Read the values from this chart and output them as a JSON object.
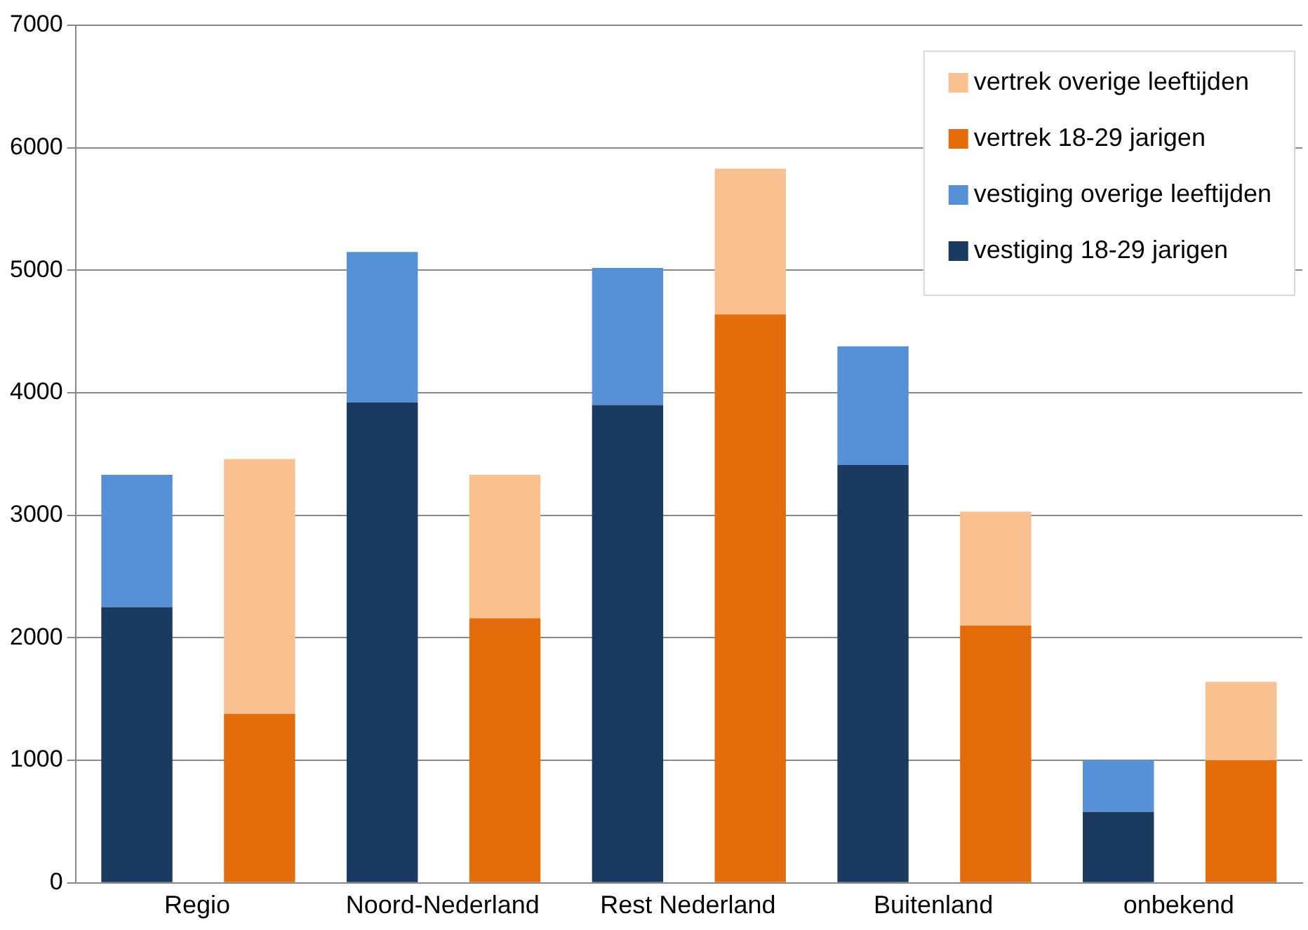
{
  "chart_data": {
    "type": "bar",
    "stacked": true,
    "categories": [
      "Regio",
      null,
      "Noord-Nederland",
      null,
      "Rest Nederland",
      null,
      "Buitenland",
      null,
      "onbekend",
      null
    ],
    "series": [
      {
        "name": "vestiging 18-29 jarigen",
        "color": "#1a3a5f",
        "values": [
          2250,
          null,
          3920,
          null,
          3900,
          null,
          3410,
          null,
          580,
          null
        ]
      },
      {
        "name": "vestiging overige leeftijden",
        "color": "#5690d6",
        "values": [
          1080,
          null,
          1230,
          null,
          1120,
          null,
          970,
          null,
          420,
          null
        ]
      },
      {
        "name": "vertrek 18-29 jarigen",
        "color": "#e46c0a",
        "values": [
          null,
          1380,
          null,
          2160,
          null,
          4640,
          null,
          2100,
          null,
          1000
        ]
      },
      {
        "name": "vertrek overige leeftijden",
        "color": "#f9c090",
        "values": [
          null,
          2080,
          null,
          1170,
          null,
          1190,
          null,
          930,
          null,
          640
        ]
      }
    ],
    "ylim": [
      0,
      7000
    ],
    "yticks": [
      0,
      1000,
      2000,
      3000,
      4000,
      5000,
      6000,
      7000
    ],
    "grid": "y",
    "legend": "top right"
  }
}
